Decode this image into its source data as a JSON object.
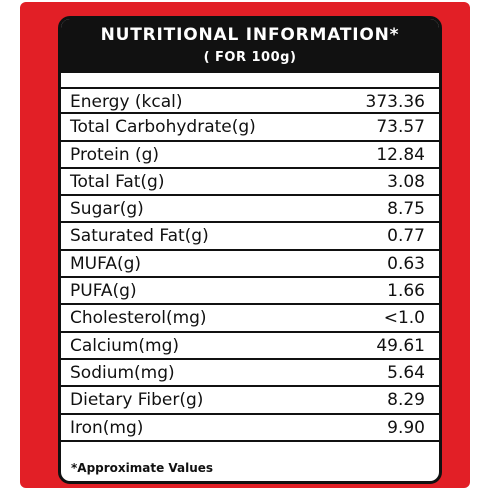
{
  "header": {
    "title": "NUTRITIONAL INFORMATION*",
    "subtitle": "( FOR 100g)"
  },
  "nutrients": [
    {
      "label": "Energy (kcal)",
      "value": "373.36"
    },
    {
      "label": "Total Carbohydrate(g)",
      "value": "73.57"
    },
    {
      "label": "Protein (g)",
      "value": "12.84"
    },
    {
      "label": "Total Fat(g)",
      "value": "3.08"
    },
    {
      "label": "Sugar(g)",
      "value": "8.75"
    },
    {
      "label": "Saturated Fat(g)",
      "value": "0.77"
    },
    {
      "label": "MUFA(g)",
      "value": "0.63"
    },
    {
      "label": "PUFA(g)",
      "value": "1.66"
    },
    {
      "label": "Cholesterol(mg)",
      "value": "<1.0"
    },
    {
      "label": "Calcium(mg)",
      "value": "49.61"
    },
    {
      "label": "Sodium(mg)",
      "value": "5.64"
    },
    {
      "label": "Dietary Fiber(g)",
      "value": "8.29"
    },
    {
      "label": "Iron(mg)",
      "value": "9.90"
    }
  ],
  "footnote": "*Approximate Values",
  "colors": {
    "frame": "#e21f26",
    "header_bg": "#111111",
    "text": "#111111"
  }
}
